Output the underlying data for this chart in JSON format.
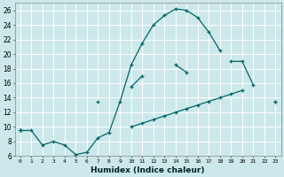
{
  "xlabel": "Humidex (Indice chaleur)",
  "background_color": "#cce8ea",
  "grid_color": "#ffffff",
  "line_color": "#006666",
  "xlim": [
    -0.5,
    23.5
  ],
  "ylim": [
    6,
    27
  ],
  "xticks": [
    0,
    1,
    2,
    3,
    4,
    5,
    6,
    7,
    8,
    9,
    10,
    11,
    12,
    13,
    14,
    15,
    16,
    17,
    18,
    19,
    20,
    21,
    22,
    23
  ],
  "yticks": [
    6,
    8,
    10,
    12,
    14,
    16,
    18,
    20,
    22,
    24,
    26
  ],
  "line1_y": [
    9.5,
    9.5,
    7.5,
    8.0,
    7.5,
    6.2,
    6.5,
    8.5,
    9.2,
    13.5,
    18.5,
    21.5,
    24.0,
    25.3,
    26.2,
    26.0,
    25.0,
    23.0,
    20.5,
    null,
    null,
    null,
    null,
    null
  ],
  "line2_y": [
    9.5,
    null,
    null,
    null,
    null,
    null,
    null,
    13.5,
    null,
    null,
    15.5,
    17.0,
    null,
    null,
    18.5,
    17.5,
    null,
    null,
    null,
    19.0,
    19.0,
    15.8,
    null,
    13.5
  ],
  "line3_y": [
    9.5,
    null,
    null,
    null,
    null,
    null,
    null,
    null,
    null,
    null,
    10.0,
    10.5,
    11.0,
    11.5,
    12.0,
    12.5,
    13.0,
    13.5,
    14.0,
    14.5,
    15.0,
    null,
    null,
    13.5
  ]
}
